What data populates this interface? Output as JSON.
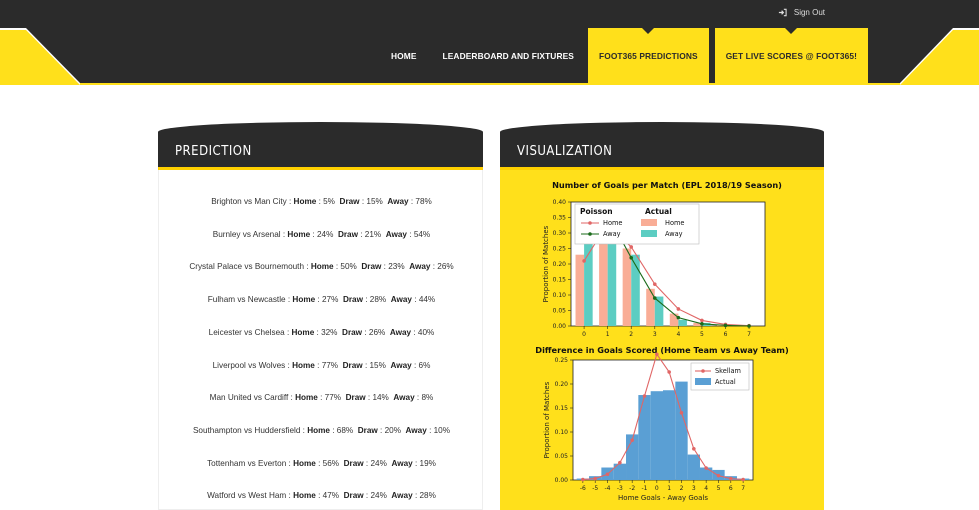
{
  "topbar": {
    "signout_label": "Sign Out"
  },
  "nav": {
    "items": [
      {
        "label": "HOME"
      },
      {
        "label": "LEADERBOARD AND FIXTURES"
      },
      {
        "label": "FOOT365 PREDICTIONS"
      },
      {
        "label": "GET LIVE SCORES @ FOOT365!"
      }
    ]
  },
  "prediction": {
    "title": "PREDICTION",
    "rows": [
      {
        "match": "Brighton vs Man City : ",
        "home": "5%",
        "draw": "15%",
        "away": "78%"
      },
      {
        "match": "Burnley vs Arsenal : ",
        "home": "24%",
        "draw": "21%",
        "away": "54%"
      },
      {
        "match": "Crystal Palace vs Bournemouth : ",
        "home": "50%",
        "draw": "23%",
        "away": "26%"
      },
      {
        "match": "Fulham vs Newcastle : ",
        "home": "27%",
        "draw": "28%",
        "away": "44%"
      },
      {
        "match": "Leicester vs Chelsea : ",
        "home": "32%",
        "draw": "26%",
        "away": "40%"
      },
      {
        "match": "Liverpool vs Wolves : ",
        "home": "77%",
        "draw": "15%",
        "away": "6%"
      },
      {
        "match": "Man United vs Cardiff : ",
        "home": "77%",
        "draw": "14%",
        "away": "8%"
      },
      {
        "match": "Southampton vs Huddersfield : ",
        "home": "68%",
        "draw": "20%",
        "away": "10%"
      },
      {
        "match": "Tottenham vs Everton : ",
        "home": "56%",
        "draw": "24%",
        "away": "19%"
      },
      {
        "match": "Watford vs West Ham : ",
        "home": "47%",
        "draw": "24%",
        "away": "28%"
      }
    ],
    "home_label": "Home",
    "draw_label": "Draw",
    "away_label": "Away"
  },
  "visualization": {
    "title": "VISUALIZATION"
  },
  "chart_data": [
    {
      "type": "bar",
      "title": "Number of Goals per Match (EPL 2018/19 Season)",
      "xlabel": "Goals per Match",
      "ylabel": "Proportion of Matches",
      "categories": [
        0,
        1,
        2,
        3,
        4,
        5,
        6,
        7
      ],
      "ylim": [
        0,
        0.4
      ],
      "yticks": [
        "0.00",
        "0.05",
        "0.10",
        "0.15",
        "0.20",
        "0.25",
        "0.30",
        "0.35",
        "0.40"
      ],
      "legend": {
        "poisson_title": "Poisson",
        "actual_title": "Actual",
        "home": "Home",
        "away": "Away"
      },
      "series": [
        {
          "name": "Home",
          "kind": "bar",
          "values": [
            0.23,
            0.325,
            0.25,
            0.12,
            0.04,
            0.01,
            0.005,
            0.0
          ],
          "color": "#f9ad96"
        },
        {
          "name": "Away",
          "kind": "bar",
          "values": [
            0.315,
            0.325,
            0.23,
            0.095,
            0.02,
            0.01,
            0.0,
            0.0
          ],
          "color": "#5ccdc2"
        },
        {
          "name": "Home",
          "kind": "line",
          "values": [
            0.21,
            0.33,
            0.255,
            0.135,
            0.055,
            0.018,
            0.005,
            0.001
          ],
          "color": "#e06666"
        },
        {
          "name": "Away",
          "kind": "line",
          "values": [
            0.295,
            0.36,
            0.22,
            0.09,
            0.027,
            0.007,
            0.002,
            0.0
          ],
          "color": "#1a6b1a"
        }
      ]
    },
    {
      "type": "bar",
      "title": "Difference in Goals Scored (Home Team vs Away Team)",
      "xlabel": "Home Goals - Away Goals",
      "ylabel": "Proportion of Matches",
      "categories": [
        -6,
        -5,
        -4,
        -3,
        -2,
        -1,
        0,
        1,
        2,
        3,
        4,
        5,
        6,
        7
      ],
      "ylim": [
        0,
        0.25
      ],
      "yticks": [
        "0.00",
        "0.05",
        "0.10",
        "0.15",
        "0.20",
        "0.25"
      ],
      "legend": {
        "line": "Skellam",
        "bar": "Actual"
      },
      "series": [
        {
          "name": "Actual",
          "kind": "bar",
          "values": [
            0.003,
            0.008,
            0.026,
            0.034,
            0.095,
            0.177,
            0.185,
            0.187,
            0.205,
            0.053,
            0.026,
            0.021,
            0.008,
            0.003
          ],
          "color": "#5a9fd4"
        },
        {
          "name": "Skellam",
          "kind": "line",
          "values": [
            0.001,
            0.003,
            0.012,
            0.036,
            0.083,
            0.175,
            0.262,
            0.225,
            0.14,
            0.065,
            0.025,
            0.009,
            0.003,
            0.001
          ],
          "color": "#e06666"
        }
      ]
    }
  ]
}
